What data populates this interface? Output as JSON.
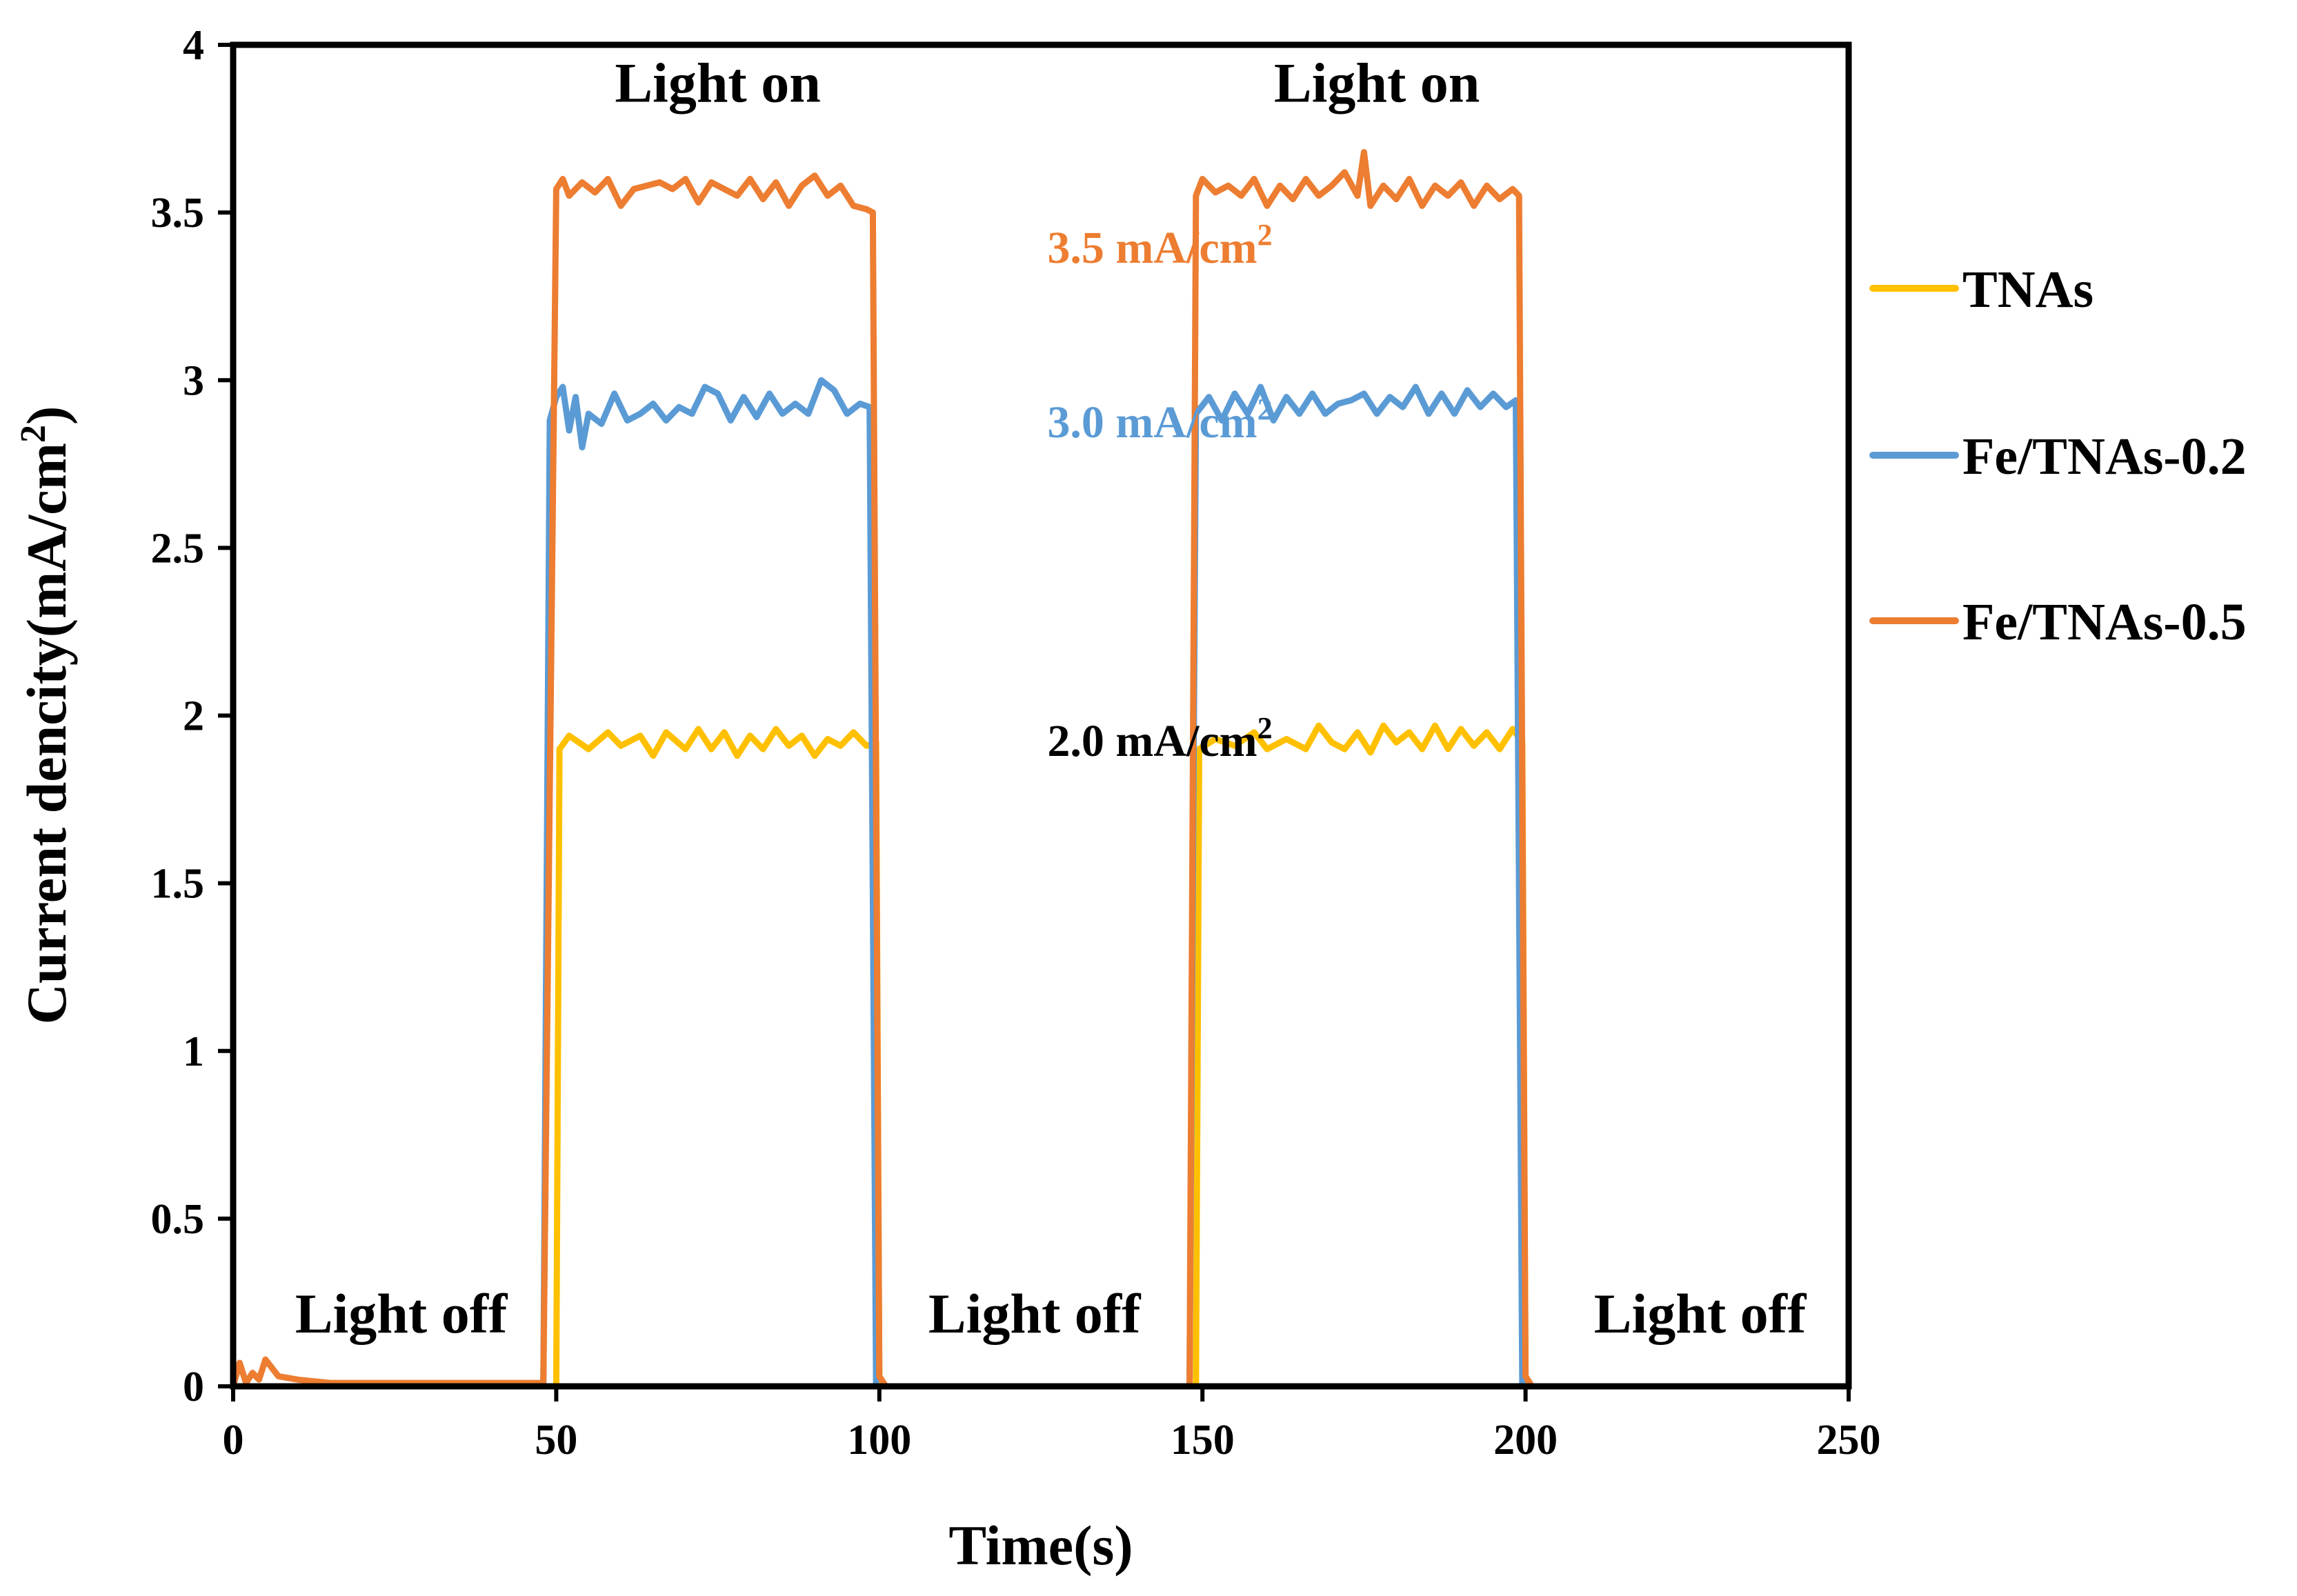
{
  "chart_data": {
    "type": "line",
    "title": "",
    "xlabel": "Time(s)",
    "ylabel_main": "Current dencity(mA/cm",
    "ylabel_sup": "2",
    "ylabel_end": ")",
    "xlim": [
      0,
      250
    ],
    "ylim": [
      0,
      4
    ],
    "x_ticks": [
      "0",
      "50",
      "100",
      "150",
      "200",
      "250"
    ],
    "y_ticks": [
      "0",
      "0.5",
      "1",
      "1.5",
      "2",
      "2.5",
      "3",
      "3.5",
      "4"
    ],
    "grid": false,
    "legend_position": "right",
    "series": [
      {
        "name": "TNAs",
        "color": "#FFC000",
        "points": [
          [
            0,
            0
          ],
          [
            50,
            0
          ],
          [
            50.5,
            1.9
          ],
          [
            52,
            1.94
          ],
          [
            55,
            1.9
          ],
          [
            58,
            1.95
          ],
          [
            60,
            1.91
          ],
          [
            63,
            1.94
          ],
          [
            65,
            1.88
          ],
          [
            67,
            1.95
          ],
          [
            70,
            1.9
          ],
          [
            72,
            1.96
          ],
          [
            74,
            1.9
          ],
          [
            76,
            1.95
          ],
          [
            78,
            1.88
          ],
          [
            80,
            1.94
          ],
          [
            82,
            1.9
          ],
          [
            84,
            1.96
          ],
          [
            86,
            1.91
          ],
          [
            88,
            1.94
          ],
          [
            90,
            1.88
          ],
          [
            92,
            1.93
          ],
          [
            94,
            1.91
          ],
          [
            96,
            1.95
          ],
          [
            98,
            1.91
          ],
          [
            99.5,
            1.92
          ],
          [
            100,
            0
          ],
          [
            149,
            0
          ],
          [
            149.5,
            1.9
          ],
          [
            152,
            1.93
          ],
          [
            155,
            1.91
          ],
          [
            158,
            1.95
          ],
          [
            160,
            1.9
          ],
          [
            163,
            1.93
          ],
          [
            166,
            1.9
          ],
          [
            168,
            1.97
          ],
          [
            170,
            1.92
          ],
          [
            172,
            1.9
          ],
          [
            174,
            1.95
          ],
          [
            176,
            1.89
          ],
          [
            178,
            1.97
          ],
          [
            180,
            1.92
          ],
          [
            182,
            1.95
          ],
          [
            184,
            1.9
          ],
          [
            186,
            1.97
          ],
          [
            188,
            1.9
          ],
          [
            190,
            1.96
          ],
          [
            192,
            1.91
          ],
          [
            194,
            1.95
          ],
          [
            196,
            1.9
          ],
          [
            198,
            1.96
          ],
          [
            199.5,
            1.92
          ],
          [
            200,
            0
          ],
          [
            250,
            0
          ]
        ]
      },
      {
        "name": "Fe/TNAs-0.2",
        "color": "#5B9BD5",
        "points": [
          [
            0,
            0
          ],
          [
            48,
            0
          ],
          [
            49,
            2.88
          ],
          [
            50,
            2.95
          ],
          [
            51,
            2.98
          ],
          [
            52,
            2.85
          ],
          [
            53,
            2.95
          ],
          [
            54,
            2.8
          ],
          [
            55,
            2.9
          ],
          [
            57,
            2.87
          ],
          [
            59,
            2.96
          ],
          [
            61,
            2.88
          ],
          [
            63,
            2.9
          ],
          [
            65,
            2.93
          ],
          [
            67,
            2.88
          ],
          [
            69,
            2.92
          ],
          [
            71,
            2.9
          ],
          [
            73,
            2.98
          ],
          [
            75,
            2.96
          ],
          [
            77,
            2.88
          ],
          [
            79,
            2.95
          ],
          [
            81,
            2.89
          ],
          [
            83,
            2.96
          ],
          [
            85,
            2.9
          ],
          [
            87,
            2.93
          ],
          [
            89,
            2.9
          ],
          [
            91,
            3.0
          ],
          [
            93,
            2.97
          ],
          [
            95,
            2.9
          ],
          [
            97,
            2.93
          ],
          [
            98.5,
            2.92
          ],
          [
            99.5,
            0
          ],
          [
            148,
            0
          ],
          [
            149,
            2.9
          ],
          [
            151,
            2.95
          ],
          [
            153,
            2.88
          ],
          [
            155,
            2.96
          ],
          [
            157,
            2.9
          ],
          [
            159,
            2.98
          ],
          [
            161,
            2.88
          ],
          [
            163,
            2.95
          ],
          [
            165,
            2.9
          ],
          [
            167,
            2.96
          ],
          [
            169,
            2.9
          ],
          [
            171,
            2.93
          ],
          [
            173,
            2.94
          ],
          [
            175,
            2.96
          ],
          [
            177,
            2.9
          ],
          [
            179,
            2.95
          ],
          [
            181,
            2.92
          ],
          [
            183,
            2.98
          ],
          [
            185,
            2.9
          ],
          [
            187,
            2.96
          ],
          [
            189,
            2.9
          ],
          [
            191,
            2.97
          ],
          [
            193,
            2.92
          ],
          [
            195,
            2.96
          ],
          [
            197,
            2.92
          ],
          [
            198.5,
            2.94
          ],
          [
            199.5,
            0
          ],
          [
            250,
            0
          ]
        ]
      },
      {
        "name": "Fe/TNAs-0.5",
        "color": "#ED7D31",
        "points": [
          [
            0,
            0
          ],
          [
            1,
            0.07
          ],
          [
            2,
            0.01
          ],
          [
            3,
            0.04
          ],
          [
            4,
            0.02
          ],
          [
            5,
            0.08
          ],
          [
            7,
            0.03
          ],
          [
            10,
            0.02
          ],
          [
            15,
            0.01
          ],
          [
            30,
            0.01
          ],
          [
            48,
            0.01
          ],
          [
            50,
            3.57
          ],
          [
            51,
            3.6
          ],
          [
            52,
            3.55
          ],
          [
            54,
            3.59
          ],
          [
            56,
            3.56
          ],
          [
            58,
            3.6
          ],
          [
            60,
            3.52
          ],
          [
            62,
            3.57
          ],
          [
            64,
            3.58
          ],
          [
            66,
            3.59
          ],
          [
            68,
            3.57
          ],
          [
            70,
            3.6
          ],
          [
            72,
            3.53
          ],
          [
            74,
            3.59
          ],
          [
            76,
            3.57
          ],
          [
            78,
            3.55
          ],
          [
            80,
            3.6
          ],
          [
            82,
            3.54
          ],
          [
            84,
            3.59
          ],
          [
            86,
            3.52
          ],
          [
            88,
            3.58
          ],
          [
            90,
            3.61
          ],
          [
            92,
            3.55
          ],
          [
            94,
            3.58
          ],
          [
            96,
            3.52
          ],
          [
            98,
            3.51
          ],
          [
            99,
            3.5
          ],
          [
            100,
            0.03
          ],
          [
            101,
            0
          ],
          [
            148,
            0
          ],
          [
            149,
            3.55
          ],
          [
            150,
            3.6
          ],
          [
            152,
            3.56
          ],
          [
            154,
            3.58
          ],
          [
            156,
            3.55
          ],
          [
            158,
            3.6
          ],
          [
            160,
            3.52
          ],
          [
            162,
            3.58
          ],
          [
            164,
            3.54
          ],
          [
            166,
            3.6
          ],
          [
            168,
            3.55
          ],
          [
            170,
            3.58
          ],
          [
            172,
            3.62
          ],
          [
            174,
            3.55
          ],
          [
            175,
            3.68
          ],
          [
            176,
            3.52
          ],
          [
            178,
            3.58
          ],
          [
            180,
            3.54
          ],
          [
            182,
            3.6
          ],
          [
            184,
            3.52
          ],
          [
            186,
            3.58
          ],
          [
            188,
            3.55
          ],
          [
            190,
            3.59
          ],
          [
            192,
            3.52
          ],
          [
            194,
            3.58
          ],
          [
            196,
            3.54
          ],
          [
            198,
            3.57
          ],
          [
            199,
            3.55
          ],
          [
            200,
            0.03
          ],
          [
            201,
            0
          ],
          [
            250,
            0
          ]
        ]
      }
    ],
    "annotations": [
      {
        "text": "Light on",
        "kind": "period",
        "x": 75,
        "y": 3.83
      },
      {
        "text": "Light on",
        "kind": "period",
        "x": 177,
        "y": 3.83
      },
      {
        "text": "Light off",
        "kind": "period",
        "x": 26,
        "y": 0.16
      },
      {
        "text": "Light off",
        "kind": "period",
        "x": 124,
        "y": 0.16
      },
      {
        "text": "Light off",
        "kind": "period",
        "x": 227,
        "y": 0.16
      },
      {
        "text": "3.5 mA/cm",
        "sup": "2",
        "kind": "value",
        "x": 126,
        "y": 3.35,
        "color": "#ED7D31"
      },
      {
        "text": "3.0 mA/cm",
        "sup": "2",
        "kind": "value",
        "x": 126,
        "y": 2.83,
        "color": "#5B9BD5"
      },
      {
        "text": "2.0 mA/cm",
        "sup": "2",
        "kind": "value",
        "x": 126,
        "y": 1.88,
        "color": "#000000"
      }
    ]
  }
}
